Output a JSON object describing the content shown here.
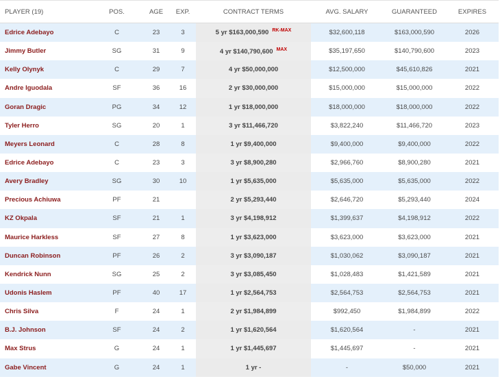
{
  "headers": {
    "player": "PLAYER (19)",
    "pos": "POS.",
    "age": "AGE",
    "exp": "EXP.",
    "terms": "CONTRACT TERMS",
    "avg": "AVG. SALARY",
    "guaranteed": "GUARANTEED",
    "expires": "EXPIRES"
  },
  "rows": [
    {
      "player": "Edrice Adebayo",
      "pos": "C",
      "age": "23",
      "exp": "3",
      "terms": "5 yr $163,000,590",
      "tag": "RK-MAX",
      "avg": "$32,600,118",
      "guaranteed": "$163,000,590",
      "expires": "2026"
    },
    {
      "player": "Jimmy Butler",
      "pos": "SG",
      "age": "31",
      "exp": "9",
      "terms": "4 yr $140,790,600",
      "tag": "MAX",
      "avg": "$35,197,650",
      "guaranteed": "$140,790,600",
      "expires": "2023"
    },
    {
      "player": "Kelly Olynyk",
      "pos": "C",
      "age": "29",
      "exp": "7",
      "terms": "4 yr $50,000,000",
      "tag": "",
      "avg": "$12,500,000",
      "guaranteed": "$45,610,826",
      "expires": "2021"
    },
    {
      "player": "Andre Iguodala",
      "pos": "SF",
      "age": "36",
      "exp": "16",
      "terms": "2 yr $30,000,000",
      "tag": "",
      "avg": "$15,000,000",
      "guaranteed": "$15,000,000",
      "expires": "2022"
    },
    {
      "player": "Goran Dragic",
      "pos": "PG",
      "age": "34",
      "exp": "12",
      "terms": "1 yr $18,000,000",
      "tag": "",
      "avg": "$18,000,000",
      "guaranteed": "$18,000,000",
      "expires": "2022"
    },
    {
      "player": "Tyler Herro",
      "pos": "SG",
      "age": "20",
      "exp": "1",
      "terms": "3 yr $11,466,720",
      "tag": "",
      "avg": "$3,822,240",
      "guaranteed": "$11,466,720",
      "expires": "2023"
    },
    {
      "player": "Meyers Leonard",
      "pos": "C",
      "age": "28",
      "exp": "8",
      "terms": "1 yr $9,400,000",
      "tag": "",
      "avg": "$9,400,000",
      "guaranteed": "$9,400,000",
      "expires": "2022"
    },
    {
      "player": "Edrice Adebayo",
      "pos": "C",
      "age": "23",
      "exp": "3",
      "terms": "3 yr $8,900,280",
      "tag": "",
      "avg": "$2,966,760",
      "guaranteed": "$8,900,280",
      "expires": "2021"
    },
    {
      "player": "Avery Bradley",
      "pos": "SG",
      "age": "30",
      "exp": "10",
      "terms": "1 yr $5,635,000",
      "tag": "",
      "avg": "$5,635,000",
      "guaranteed": "$5,635,000",
      "expires": "2022"
    },
    {
      "player": "Precious Achiuwa",
      "pos": "PF",
      "age": "21",
      "exp": "",
      "terms": "2 yr $5,293,440",
      "tag": "",
      "avg": "$2,646,720",
      "guaranteed": "$5,293,440",
      "expires": "2024"
    },
    {
      "player": "KZ Okpala",
      "pos": "SF",
      "age": "21",
      "exp": "1",
      "terms": "3 yr $4,198,912",
      "tag": "",
      "avg": "$1,399,637",
      "guaranteed": "$4,198,912",
      "expires": "2022"
    },
    {
      "player": "Maurice Harkless",
      "pos": "SF",
      "age": "27",
      "exp": "8",
      "terms": "1 yr $3,623,000",
      "tag": "",
      "avg": "$3,623,000",
      "guaranteed": "$3,623,000",
      "expires": "2021"
    },
    {
      "player": "Duncan Robinson",
      "pos": "PF",
      "age": "26",
      "exp": "2",
      "terms": "3 yr $3,090,187",
      "tag": "",
      "avg": "$1,030,062",
      "guaranteed": "$3,090,187",
      "expires": "2021"
    },
    {
      "player": "Kendrick Nunn",
      "pos": "SG",
      "age": "25",
      "exp": "2",
      "terms": "3 yr $3,085,450",
      "tag": "",
      "avg": "$1,028,483",
      "guaranteed": "$1,421,589",
      "expires": "2021"
    },
    {
      "player": "Udonis Haslem",
      "pos": "PF",
      "age": "40",
      "exp": "17",
      "terms": "1 yr $2,564,753",
      "tag": "",
      "avg": "$2,564,753",
      "guaranteed": "$2,564,753",
      "expires": "2021"
    },
    {
      "player": "Chris Silva",
      "pos": "F",
      "age": "24",
      "exp": "1",
      "terms": "2 yr $1,984,899",
      "tag": "",
      "avg": "$992,450",
      "guaranteed": "$1,984,899",
      "expires": "2022"
    },
    {
      "player": "B.J. Johnson",
      "pos": "SF",
      "age": "24",
      "exp": "2",
      "terms": "1 yr $1,620,564",
      "tag": "",
      "avg": "$1,620,564",
      "guaranteed": "-",
      "expires": "2021"
    },
    {
      "player": "Max Strus",
      "pos": "G",
      "age": "24",
      "exp": "1",
      "terms": "1 yr $1,445,697",
      "tag": "",
      "avg": "$1,445,697",
      "guaranteed": "-",
      "expires": "2021"
    },
    {
      "player": "Gabe Vincent",
      "pos": "G",
      "age": "24",
      "exp": "1",
      "terms": "1 yr -",
      "tag": "",
      "avg": "-",
      "guaranteed": "$50,000",
      "expires": "2021"
    }
  ]
}
